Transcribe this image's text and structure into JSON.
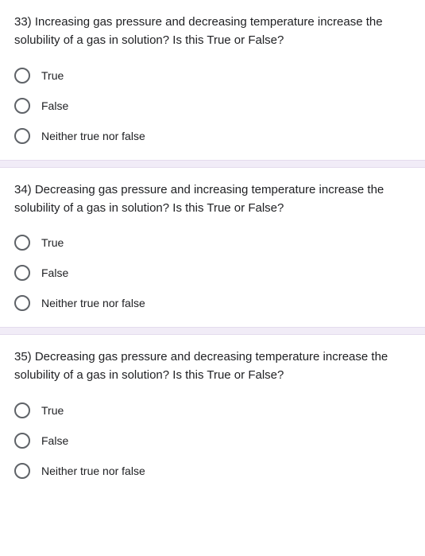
{
  "colors": {
    "text": "#202124",
    "radio_border": "#5f6368",
    "divider_bg": "#f1ecf7",
    "divider_border": "#e4dced",
    "background": "#ffffff"
  },
  "questions": [
    {
      "number": "33)",
      "text": "33)   Increasing gas pressure and decreasing temperature increase the solubility of a gas in solution?  Is this True or False?",
      "options": [
        "True",
        "False",
        "Neither true nor false"
      ]
    },
    {
      "number": "34)",
      "text": "34)  Decreasing gas pressure and increasing temperature increase the solubility of a gas in solution?  Is this True or False?",
      "options": [
        "True",
        "False",
        "Neither true nor false"
      ]
    },
    {
      "number": "35)",
      "text": "35)  Decreasing gas pressure and decreasing temperature increase the solubility of a gas in solution?  Is this True or False?",
      "options": [
        "True",
        "False",
        "Neither true nor false"
      ]
    }
  ]
}
